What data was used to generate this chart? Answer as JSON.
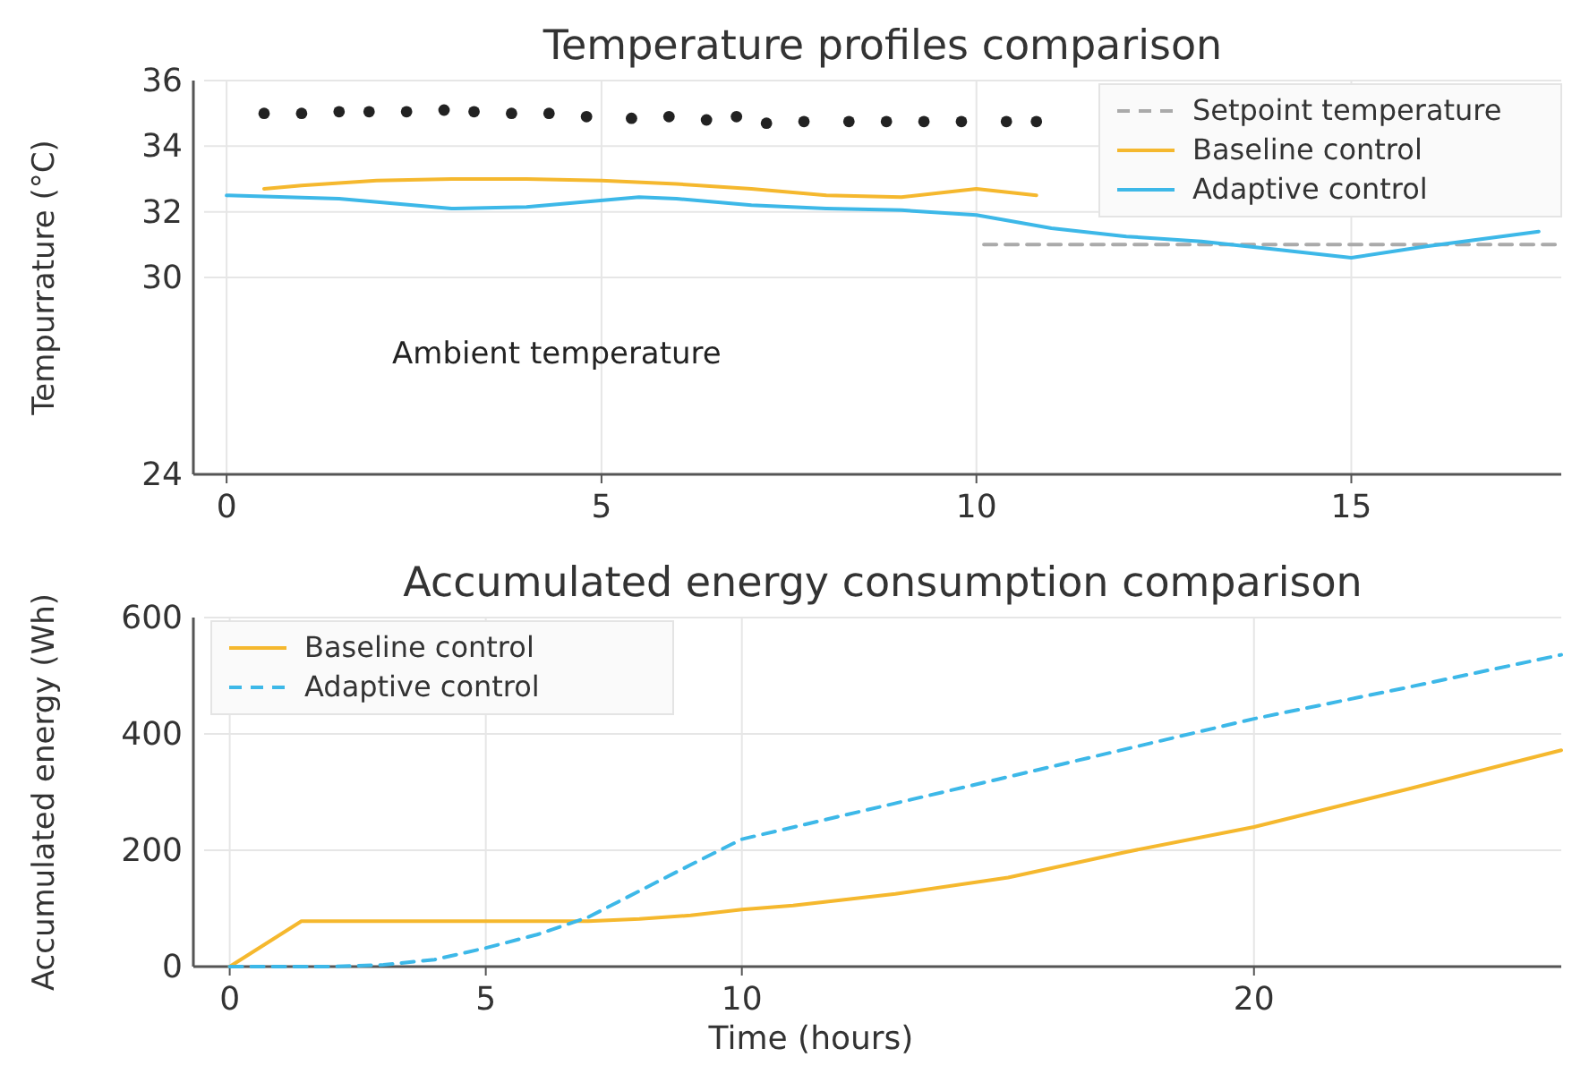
{
  "chart_data": [
    {
      "type": "line",
      "title": "Temperature profiles comparison",
      "ylabel": "Tempurrature (°C)",
      "xlim": [
        -0.3,
        17.8
      ],
      "xticks": [
        0,
        5,
        10,
        15
      ],
      "ylim": [
        24,
        36
      ],
      "yticks": [
        24,
        30,
        32,
        34,
        36
      ],
      "grid": true,
      "legend": "top right",
      "tick_labels": true,
      "annotations": [
        "Ambient temperature"
      ],
      "series": [
        {
          "type": "scatter",
          "color": "#222222",
          "marker": "circle",
          "x": [
            0.5,
            1.0,
            1.5,
            1.9,
            2.4,
            2.9,
            3.3,
            3.8,
            4.3,
            4.8,
            5.4,
            5.9,
            6.4,
            6.8,
            7.2,
            7.7,
            8.3,
            8.8,
            9.3,
            9.8,
            10.4,
            10.8
          ],
          "values": [
            35.0,
            35.0,
            35.05,
            35.05,
            35.05,
            35.1,
            35.05,
            35.0,
            35.0,
            34.9,
            34.85,
            34.9,
            34.8,
            34.9,
            34.7,
            34.75,
            34.75,
            34.75,
            34.75,
            34.75,
            34.75,
            34.75
          ]
        },
        {
          "name": "Setpoint temperature",
          "color": "#aaaaaa",
          "line_style": "dashed",
          "x": [
            10.1,
            17.8
          ],
          "values": [
            31.0,
            31.0
          ]
        },
        {
          "name": "Baseline control",
          "color": "#f5b82e",
          "line_style": "solid",
          "x": [
            0.5,
            1.0,
            2.0,
            3.0,
            4.0,
            5.0,
            6.0,
            7.0,
            8.0,
            9.0,
            10.0,
            10.8
          ],
          "values": [
            32.7,
            32.8,
            32.95,
            33.0,
            33.0,
            32.95,
            32.85,
            32.7,
            32.5,
            32.45,
            32.7,
            32.5
          ]
        },
        {
          "name": "Adaptive control",
          "color": "#3db8e8",
          "line_style": "solid",
          "x": [
            0,
            1.5,
            3.0,
            4.0,
            5.5,
            6.0,
            7.0,
            8.0,
            9.0,
            10.0,
            11.0,
            12.0,
            13.0,
            14.0,
            15.0,
            16.0,
            17.5
          ],
          "values": [
            32.5,
            32.4,
            32.1,
            32.15,
            32.45,
            32.4,
            32.2,
            32.1,
            32.05,
            31.9,
            31.5,
            31.25,
            31.1,
            30.85,
            30.6,
            30.95,
            31.4
          ]
        }
      ]
    },
    {
      "type": "line",
      "title": "Accumulated energy consumption comparison",
      "xlabel": "Time (hours)",
      "ylabel": "Accumulated energy (Wh)",
      "xlim": [
        -0.5,
        26
      ],
      "xticks": [
        0,
        5,
        10,
        20
      ],
      "ylim": [
        0,
        600
      ],
      "yticks": [
        0,
        200,
        400,
        600
      ],
      "grid": true,
      "legend": "top left",
      "series": [
        {
          "name": "Baseline control",
          "color": "#f5b82e",
          "line_style": "solid",
          "x": [
            0,
            1.4,
            3,
            5,
            7,
            8,
            9,
            10,
            11,
            13,
            15.2,
            17.5,
            20,
            23,
            26
          ],
          "values": [
            0,
            78,
            78,
            78,
            78,
            82,
            88,
            98,
            105,
            125,
            153,
            197,
            240,
            305,
            372
          ]
        },
        {
          "name": "Adaptive control",
          "color": "#3db8e8",
          "line_style": "dashed",
          "x": [
            0,
            2,
            3,
            4,
            5,
            6,
            7,
            8,
            9,
            10,
            15,
            20,
            23,
            26
          ],
          "values": [
            0,
            0,
            3,
            12,
            32,
            55,
            85,
            130,
            175,
            219,
            322,
            426,
            480,
            536
          ]
        }
      ]
    }
  ]
}
